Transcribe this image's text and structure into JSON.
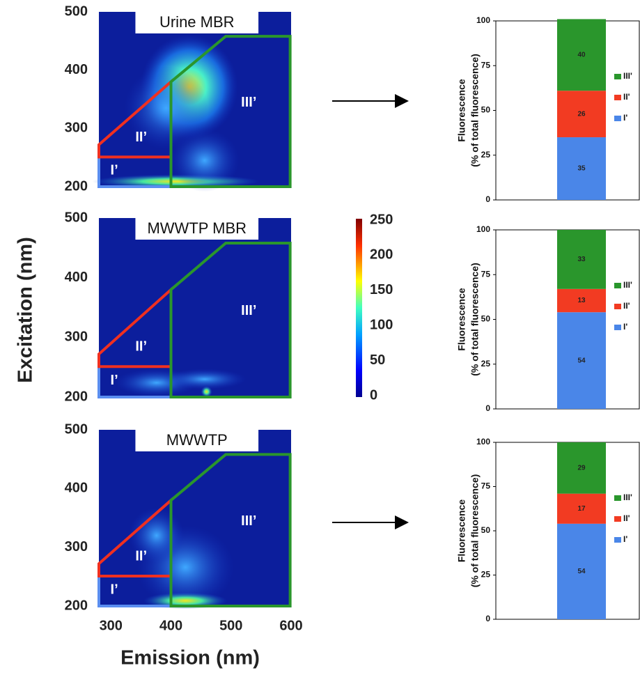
{
  "axis_labels": {
    "y_label": "Excitation (nm)",
    "x_label": "Emission (nm)"
  },
  "chart_data": [
    {
      "type": "eem",
      "title": "Urine MBR",
      "xlim": [
        280,
        600
      ],
      "ylim": [
        200,
        500
      ],
      "yticks": [
        200,
        300,
        400,
        500
      ],
      "regions": [
        "I’",
        "II’",
        "III’"
      ]
    },
    {
      "type": "eem",
      "title": "MWWTP MBR",
      "xlim": [
        280,
        600
      ],
      "ylim": [
        200,
        500
      ],
      "yticks": [
        200,
        300,
        400,
        500
      ],
      "regions": [
        "I’",
        "II’",
        "III’"
      ]
    },
    {
      "type": "eem",
      "title": "MWWTP",
      "xlim": [
        280,
        600
      ],
      "ylim": [
        200,
        500
      ],
      "yticks": [
        200,
        300,
        400,
        500
      ],
      "xticks": [
        300,
        400,
        500,
        600
      ],
      "regions": [
        "I’",
        "II’",
        "III’"
      ]
    },
    {
      "type": "colorbar",
      "lim": [
        0,
        250
      ],
      "ticks": [
        0,
        50,
        100,
        150,
        200,
        250
      ]
    },
    {
      "type": "stacked_bar",
      "y_label": [
        "Fluorescence",
        "(% of total fluorescence)"
      ],
      "ylim": [
        0,
        100
      ],
      "yticks": [
        0,
        25,
        50,
        75,
        100
      ],
      "series": [
        {
          "name": "I'",
          "color": "#4a86e8",
          "values": [
            35
          ]
        },
        {
          "name": "II'",
          "color": "#f23b22",
          "values": [
            26
          ]
        },
        {
          "name": "III'",
          "color": "#2a962c",
          "values": [
            40
          ]
        }
      ]
    },
    {
      "type": "stacked_bar",
      "y_label": [
        "Fluorescence",
        "(% of total fluorescence)"
      ],
      "ylim": [
        0,
        100
      ],
      "yticks": [
        0,
        25,
        50,
        75,
        100
      ],
      "series": [
        {
          "name": "I'",
          "color": "#4a86e8",
          "values": [
            54
          ]
        },
        {
          "name": "II'",
          "color": "#f23b22",
          "values": [
            13
          ]
        },
        {
          "name": "III'",
          "color": "#2a962c",
          "values": [
            33
          ]
        }
      ]
    },
    {
      "type": "stacked_bar",
      "y_label": [
        "Fluorescence",
        "(% of total fluorescence)"
      ],
      "ylim": [
        0,
        100
      ],
      "yticks": [
        0,
        25,
        50,
        75,
        100
      ],
      "series": [
        {
          "name": "I'",
          "color": "#4a86e8",
          "values": [
            54
          ]
        },
        {
          "name": "II'",
          "color": "#f23b22",
          "values": [
            17
          ]
        },
        {
          "name": "III'",
          "color": "#2a962c",
          "values": [
            29
          ]
        }
      ]
    }
  ]
}
